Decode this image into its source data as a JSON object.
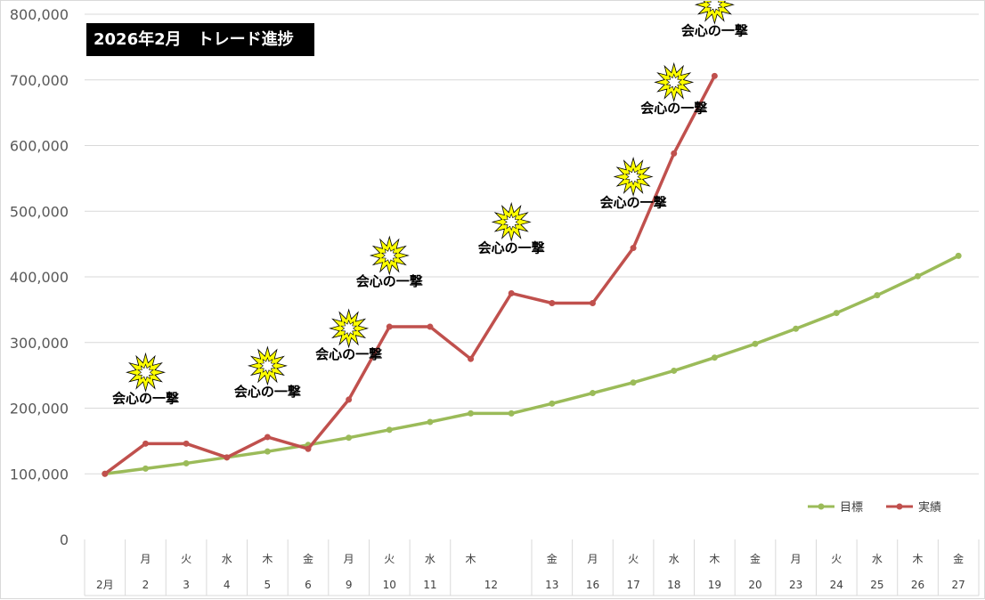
{
  "colors": {
    "target": "#9bbb59",
    "actual": "#c0504d",
    "grid": "#d9d9d9",
    "burst_fill": "#ffff00",
    "title_bg": "#000000"
  },
  "chart_data": {
    "type": "line",
    "title": "2026年2月　トレード進捗",
    "ylim": [
      0,
      800000
    ],
    "yticks": [
      "0",
      "100,000",
      "200,000",
      "300,000",
      "400,000",
      "500,000",
      "600,000",
      "700,000",
      "800,000"
    ],
    "categories": [
      {
        "weekday": "",
        "day": "2月"
      },
      {
        "weekday": "月",
        "day": "2"
      },
      {
        "weekday": "火",
        "day": "3"
      },
      {
        "weekday": "水",
        "day": "4"
      },
      {
        "weekday": "木",
        "day": "5"
      },
      {
        "weekday": "金",
        "day": "6"
      },
      {
        "weekday": "月",
        "day": "9"
      },
      {
        "weekday": "火",
        "day": "10"
      },
      {
        "weekday": "水",
        "day": "11"
      },
      {
        "weekday": "木",
        "day": "12"
      },
      {
        "weekday": "",
        "day": ""
      },
      {
        "weekday": "金",
        "day": "13"
      },
      {
        "weekday": "月",
        "day": "16"
      },
      {
        "weekday": "火",
        "day": "17"
      },
      {
        "weekday": "水",
        "day": "18"
      },
      {
        "weekday": "木",
        "day": "19"
      },
      {
        "weekday": "金",
        "day": "20"
      },
      {
        "weekday": "月",
        "day": "23"
      },
      {
        "weekday": "火",
        "day": "24"
      },
      {
        "weekday": "水",
        "day": "25"
      },
      {
        "weekday": "木",
        "day": "26"
      },
      {
        "weekday": "金",
        "day": "27"
      }
    ],
    "series": [
      {
        "name": "目標",
        "color": "#9bbb59",
        "values": [
          100000,
          108000,
          116000,
          125000,
          134000,
          144000,
          155000,
          167000,
          179000,
          192000,
          192000,
          207000,
          223000,
          239000,
          257000,
          277000,
          298000,
          321000,
          345000,
          372000,
          401000,
          432000
        ]
      },
      {
        "name": "実績",
        "color": "#c0504d",
        "values": [
          100000,
          146000,
          146000,
          125000,
          156000,
          138000,
          213000,
          324000,
          324000,
          275000,
          375000,
          360000,
          360000,
          444000,
          588000,
          706000,
          null,
          null,
          null,
          null,
          null,
          null
        ]
      }
    ],
    "annotations": [
      {
        "index": 1,
        "text": "会心の一撃"
      },
      {
        "index": 4,
        "text": "会心の一撃"
      },
      {
        "index": 6,
        "text": "会心の一撃"
      },
      {
        "index": 7,
        "text": "会心の一撃"
      },
      {
        "index": 10,
        "text": "会心の一撃"
      },
      {
        "index": 13,
        "text": "会心の一撃"
      },
      {
        "index": 14,
        "text": "会心の一撃"
      },
      {
        "index": 15,
        "text": "会心の一撃"
      }
    ],
    "legend_position": "bottom-right",
    "grid": true
  }
}
